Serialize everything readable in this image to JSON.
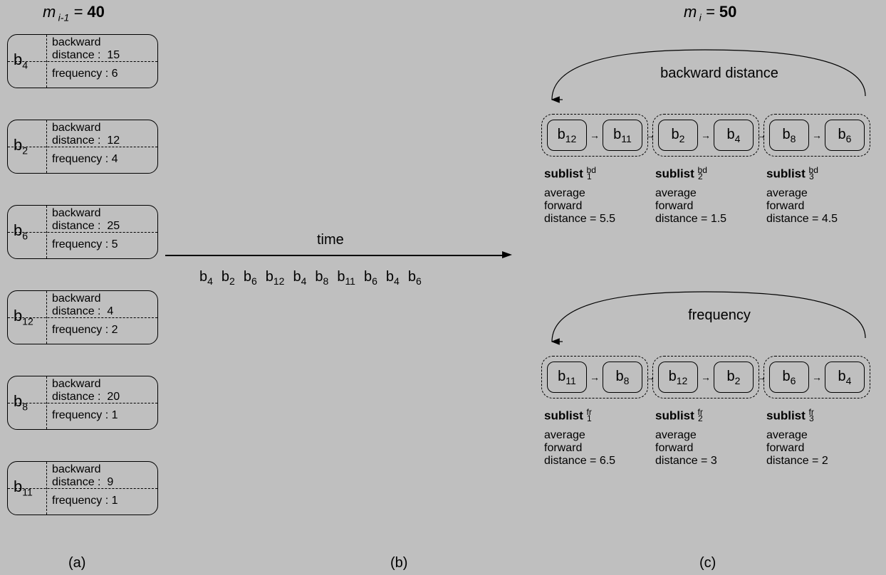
{
  "background_color": "#bfbfbf",
  "border_color": "#000000",
  "text_color": "#000000",
  "headers": {
    "left": {
      "var": "m",
      "sub": "i-1",
      "eq": "=",
      "val": "40"
    },
    "right": {
      "var": "m",
      "sub": "i",
      "eq": "=",
      "val": "50"
    }
  },
  "time_label": "time",
  "cards": [
    {
      "b": "b",
      "sub": "4",
      "bd_label": "backward",
      "bd_label2": "distance :",
      "bd_val": "15",
      "fr_label": "frequency :",
      "fr_val": "6"
    },
    {
      "b": "b",
      "sub": "2",
      "bd_label": "backward",
      "bd_label2": "distance :",
      "bd_val": "12",
      "fr_label": "frequency :",
      "fr_val": "4"
    },
    {
      "b": "b",
      "sub": "6",
      "bd_label": "backward",
      "bd_label2": "distance :",
      "bd_val": "25",
      "fr_label": "frequency :",
      "fr_val": "5"
    },
    {
      "b": "b",
      "sub": "12",
      "bd_label": "backward",
      "bd_label2": "distance :",
      "bd_val": "4",
      "fr_label": "frequency :",
      "fr_val": "2"
    },
    {
      "b": "b",
      "sub": "8",
      "bd_label": "backward",
      "bd_label2": "distance :",
      "bd_val": "20",
      "fr_label": "frequency :",
      "fr_val": "1"
    },
    {
      "b": "b",
      "sub": "11",
      "bd_label": "backward",
      "bd_label2": "distance :",
      "bd_val": "9",
      "fr_label": "frequency :",
      "fr_val": "1"
    }
  ],
  "sequence": [
    {
      "b": "b",
      "sub": "4"
    },
    {
      "b": "b",
      "sub": "2"
    },
    {
      "b": "b",
      "sub": "6"
    },
    {
      "b": "b",
      "sub": "12"
    },
    {
      "b": "b",
      "sub": "4"
    },
    {
      "b": "b",
      "sub": "8"
    },
    {
      "b": "b",
      "sub": "11"
    },
    {
      "b": "b",
      "sub": "6"
    },
    {
      "b": "b",
      "sub": "4"
    },
    {
      "b": "b",
      "sub": "6"
    }
  ],
  "bd_section": {
    "title": "backward distance",
    "nodes": [
      {
        "b": "b",
        "sub": "12"
      },
      {
        "b": "b",
        "sub": "11"
      },
      {
        "b": "b",
        "sub": "2"
      },
      {
        "b": "b",
        "sub": "4"
      },
      {
        "b": "b",
        "sub": "8"
      },
      {
        "b": "b",
        "sub": "6"
      }
    ],
    "sublists": [
      {
        "name": "sublist",
        "sub": "1",
        "sup": "bd",
        "l1": "average",
        "l2": "forward",
        "l3": "distance = 5.5"
      },
      {
        "name": "sublist",
        "sub": "2",
        "sup": "bd",
        "l1": "average",
        "l2": "forward",
        "l3": "distance = 1.5"
      },
      {
        "name": "sublist",
        "sub": "3",
        "sup": "bd",
        "l1": "average",
        "l2": "forward",
        "l3": "distance = 4.5"
      }
    ]
  },
  "fr_section": {
    "title": "frequency",
    "nodes": [
      {
        "b": "b",
        "sub": "11"
      },
      {
        "b": "b",
        "sub": "8"
      },
      {
        "b": "b",
        "sub": "12"
      },
      {
        "b": "b",
        "sub": "2"
      },
      {
        "b": "b",
        "sub": "6"
      },
      {
        "b": "b",
        "sub": "4"
      }
    ],
    "sublists": [
      {
        "name": "sublist",
        "sub": "1",
        "sup": "fr",
        "l1": "average",
        "l2": "forward",
        "l3": "distance = 6.5"
      },
      {
        "name": "sublist",
        "sub": "2",
        "sup": "fr",
        "l1": "average",
        "l2": "forward",
        "l3": "distance = 3"
      },
      {
        "name": "sublist",
        "sub": "3",
        "sup": "fr",
        "l1": "average",
        "l2": "forward",
        "l3": "distance = 2"
      }
    ]
  },
  "panel_labels": {
    "a": "(a)",
    "b": "(b)",
    "c": "(c)"
  }
}
